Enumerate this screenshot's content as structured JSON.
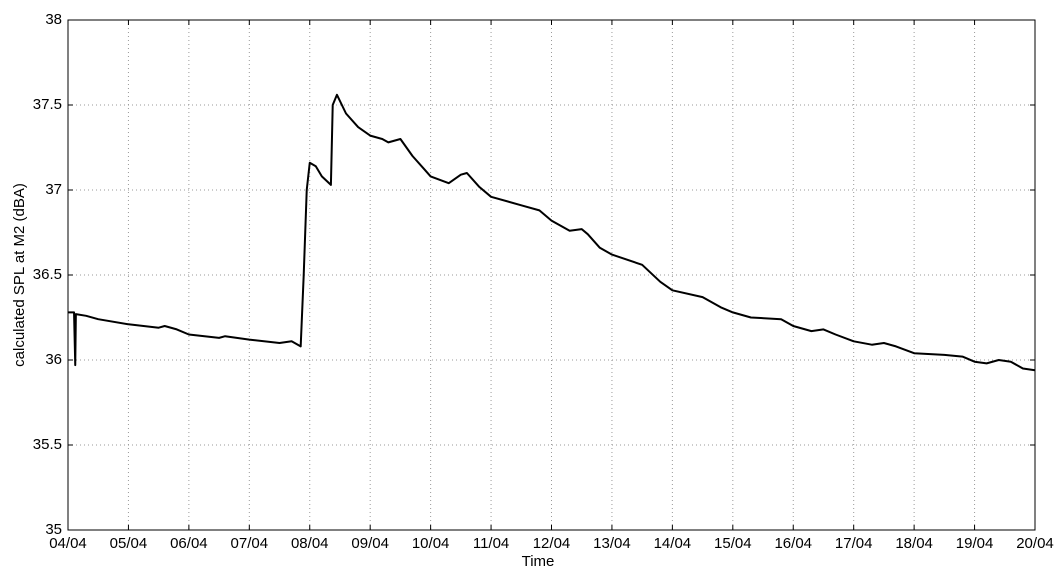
{
  "chart_data": {
    "type": "line",
    "xlabel": "Time",
    "ylabel": "calculated SPL at M2 (dBA)",
    "color": "#000000",
    "grid": true,
    "xlim": [
      4,
      20
    ],
    "xticks": [
      {
        "value": 4,
        "label": "04/04"
      },
      {
        "value": 5,
        "label": "05/04"
      },
      {
        "value": 6,
        "label": "06/04"
      },
      {
        "value": 7,
        "label": "07/04"
      },
      {
        "value": 8,
        "label": "08/04"
      },
      {
        "value": 9,
        "label": "09/04"
      },
      {
        "value": 10,
        "label": "10/04"
      },
      {
        "value": 11,
        "label": "11/04"
      },
      {
        "value": 12,
        "label": "12/04"
      },
      {
        "value": 13,
        "label": "13/04"
      },
      {
        "value": 14,
        "label": "14/04"
      },
      {
        "value": 15,
        "label": "15/04"
      },
      {
        "value": 16,
        "label": "16/04"
      },
      {
        "value": 17,
        "label": "17/04"
      },
      {
        "value": 18,
        "label": "18/04"
      },
      {
        "value": 19,
        "label": "19/04"
      },
      {
        "value": 20,
        "label": "20/04"
      }
    ],
    "ylim": [
      35,
      38
    ],
    "yticks": [
      35,
      35.5,
      36,
      36.5,
      37,
      37.5,
      38
    ],
    "x": [
      4,
      4.1,
      4.12,
      4.13,
      4.3,
      4.5,
      5.0,
      5.5,
      5.6,
      5.8,
      6.0,
      6.5,
      6.6,
      7.0,
      7.5,
      7.7,
      7.85,
      7.9,
      7.95,
      8.0,
      8.1,
      8.2,
      8.35,
      8.38,
      8.45,
      8.6,
      8.8,
      9.0,
      9.2,
      9.3,
      9.5,
      9.7,
      9.9,
      10.0,
      10.3,
      10.5,
      10.6,
      10.8,
      11.0,
      11.5,
      11.8,
      12.0,
      12.3,
      12.5,
      12.6,
      12.8,
      13.0,
      13.5,
      13.8,
      14.0,
      14.5,
      14.8,
      15.0,
      15.3,
      15.8,
      16.0,
      16.3,
      16.5,
      16.7,
      17.0,
      17.3,
      17.5,
      17.7,
      18.0,
      18.5,
      18.8,
      19.0,
      19.2,
      19.4,
      19.6,
      19.8,
      20.0
    ],
    "values": [
      36.28,
      36.28,
      35.97,
      36.27,
      36.26,
      36.24,
      36.21,
      36.19,
      36.2,
      36.18,
      36.15,
      36.13,
      36.14,
      36.12,
      36.1,
      36.11,
      36.08,
      36.5,
      37.0,
      37.16,
      37.14,
      37.08,
      37.03,
      37.5,
      37.56,
      37.45,
      37.37,
      37.32,
      37.3,
      37.28,
      37.3,
      37.2,
      37.12,
      37.08,
      37.04,
      37.09,
      37.1,
      37.02,
      36.96,
      36.91,
      36.88,
      36.82,
      36.76,
      36.77,
      36.74,
      36.66,
      36.62,
      36.56,
      36.46,
      36.41,
      36.37,
      36.31,
      36.28,
      36.25,
      36.24,
      36.2,
      36.17,
      36.18,
      36.15,
      36.11,
      36.09,
      36.1,
      36.08,
      36.04,
      36.03,
      36.02,
      35.99,
      35.98,
      36.0,
      35.99,
      35.95,
      35.94
    ]
  }
}
